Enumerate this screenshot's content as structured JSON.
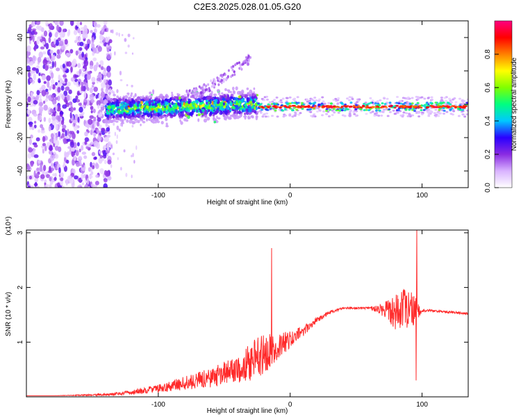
{
  "title": "C2E3.2025.028.01.05.G20",
  "chart_data": [
    {
      "type": "heatmap",
      "title": "C2E3.2025.028.01.05.G20",
      "xlabel": "Height of straight line (km)",
      "ylabel": "Frequency (Hz)",
      "xlim": [
        -200,
        135
      ],
      "ylim": [
        -50,
        50
      ],
      "x_ticks": [
        -100,
        0,
        100
      ],
      "y_ticks": [
        -40,
        -20,
        0,
        20,
        40
      ],
      "colorbar": {
        "label": "Normalized spectral amplitude",
        "range": [
          0,
          1
        ],
        "ticks": [
          0.0,
          0.2,
          0.4,
          0.6,
          0.8
        ],
        "tick_labels": [
          "0.0",
          "0.2",
          "0.4",
          "0.6",
          "0.8"
        ],
        "colormap": [
          "#ffffff",
          "#d9b3ff",
          "#8a2be2",
          "#2a00ff",
          "#00c8ff",
          "#00ff80",
          "#80ff00",
          "#ffff00",
          "#ff8000",
          "#ff0000",
          "#ff0080"
        ]
      },
      "features": [
        {
          "kind": "noise",
          "x_range": [
            -200,
            -140
          ],
          "freq_range": [
            -50,
            50
          ],
          "amplitude": 0.15
        },
        {
          "kind": "band",
          "x_range": [
            -140,
            -25
          ],
          "center_freq": [
            -3,
            0
          ],
          "half_width_hz": 5,
          "amplitude": 0.35
        },
        {
          "kind": "drift",
          "x_start": -80,
          "x_end": -30,
          "freq_start": 5,
          "freq_end": 28,
          "amplitude": 0.1
        },
        {
          "kind": "line",
          "x_range": [
            -25,
            135
          ],
          "freq": -1.5,
          "amplitude": 0.95
        }
      ]
    },
    {
      "type": "line",
      "xlabel": "Height of straight line (km)",
      "ylabel": "SNR (10 * v/v)",
      "scale_note": "(x10⁴)",
      "xlim": [
        -200,
        135
      ],
      "ylim": [
        0,
        3.05
      ],
      "y_multiplier": 10000,
      "x_ticks": [
        -100,
        0,
        100
      ],
      "y_ticks": [
        1,
        2,
        3
      ],
      "series": [
        {
          "color": "#ff2a2a",
          "x": [
            -200,
            -180,
            -160,
            -140,
            -120,
            -100,
            -80,
            -60,
            -40,
            -30,
            -20,
            -10,
            0,
            10,
            20,
            30,
            40,
            50,
            60,
            70,
            80,
            90,
            95,
            100,
            110,
            120,
            135
          ],
          "y": [
            0.02,
            0.02,
            0.03,
            0.04,
            0.08,
            0.15,
            0.25,
            0.35,
            0.5,
            0.65,
            0.78,
            0.92,
            1.05,
            1.2,
            1.4,
            1.55,
            1.62,
            1.62,
            1.62,
            1.6,
            1.58,
            1.55,
            1.58,
            1.58,
            1.57,
            1.55,
            1.52
          ],
          "noise": [
            0,
            0,
            0.01,
            0.02,
            0.04,
            0.08,
            0.12,
            0.18,
            0.25,
            0.35,
            0.38,
            0.25,
            0.15,
            0.1,
            0.05,
            0.03,
            0.02,
            0.02,
            0.02,
            0.12,
            0.35,
            0.45,
            0.25,
            0.03,
            0.02,
            0.02,
            0.02
          ],
          "peaks": [
            {
              "x": -14,
              "y": 2.72
            },
            {
              "x": 96,
              "y": 3.05
            },
            {
              "x": 95.5,
              "y": 0.3
            }
          ]
        }
      ]
    }
  ]
}
